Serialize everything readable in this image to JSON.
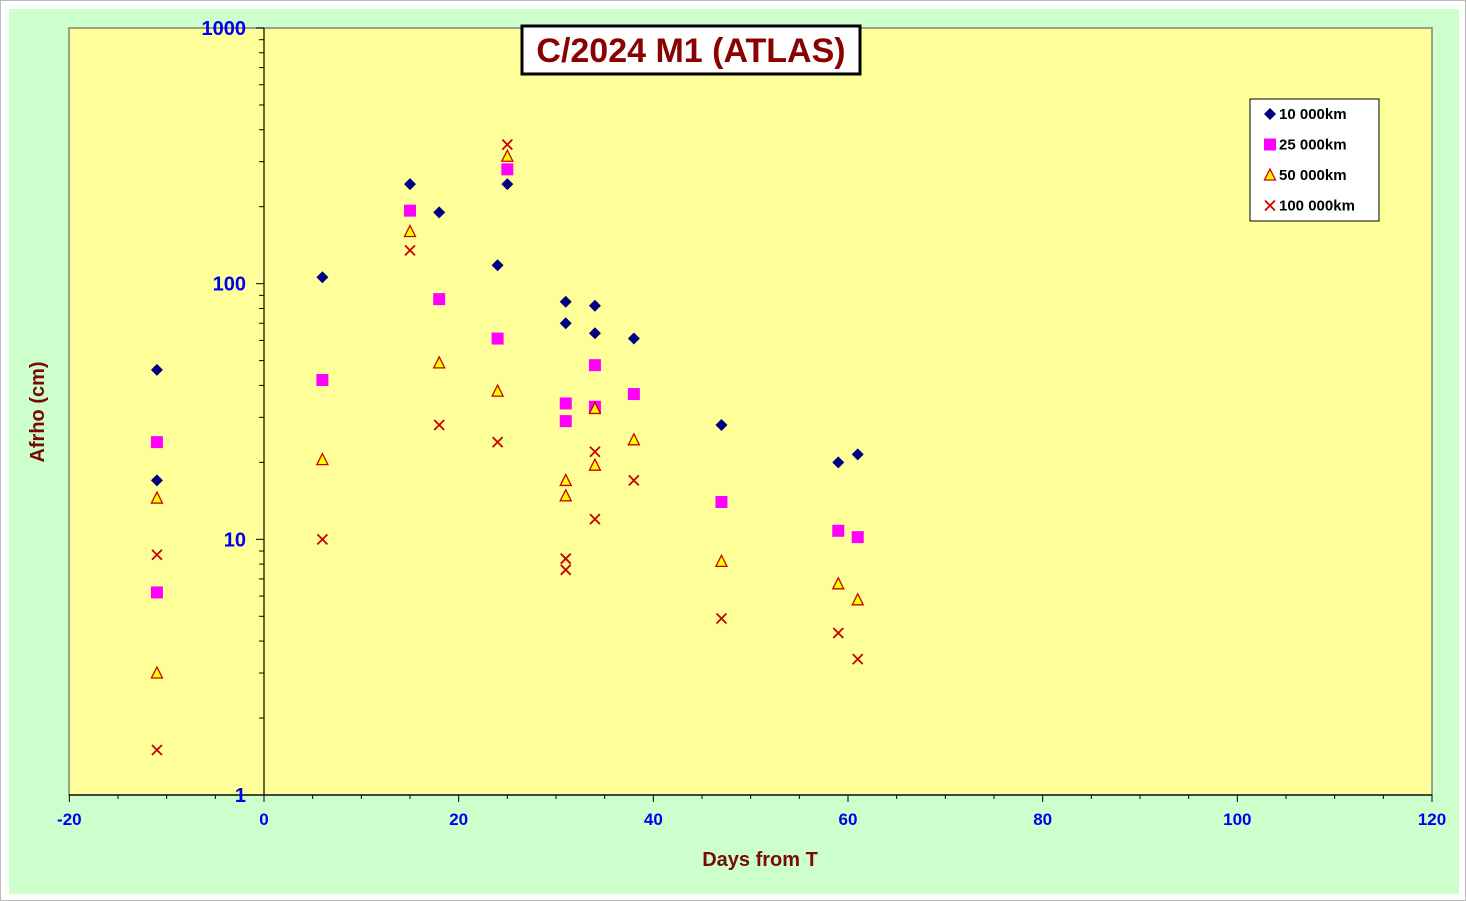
{
  "chart_data": {
    "type": "scatter",
    "title": "C/2024 M1 (ATLAS)",
    "xlabel": "Days from T",
    "ylabel": "Afrho (cm)",
    "xlim": [
      -20,
      120
    ],
    "ylim": [
      1,
      1000
    ],
    "yscale": "log",
    "x_ticks": [
      "-20",
      "0",
      "20",
      "40",
      "60",
      "80",
      "100",
      "120"
    ],
    "y_ticks": [
      "1",
      "10",
      "100",
      "1000"
    ],
    "grid": false,
    "legend_position": "top-right",
    "background_color": "#ccffcc",
    "plot_area_color": "#ffff99",
    "series": [
      {
        "name": "10 000km",
        "marker": "diamond",
        "color": "#000080",
        "points": [
          [
            -11,
            46
          ],
          [
            -11,
            17
          ],
          [
            6,
            106
          ],
          [
            15,
            245
          ],
          [
            18,
            190
          ],
          [
            24,
            118
          ],
          [
            25,
            245
          ],
          [
            31,
            85
          ],
          [
            31,
            70
          ],
          [
            34,
            82
          ],
          [
            34,
            64
          ],
          [
            38,
            61
          ],
          [
            47,
            28
          ],
          [
            59,
            20
          ],
          [
            61,
            21.5
          ]
        ]
      },
      {
        "name": "25 000km",
        "marker": "square",
        "color": "#ff00ff",
        "points": [
          [
            -11,
            24
          ],
          [
            -11,
            6.2
          ],
          [
            6,
            42
          ],
          [
            15,
            193
          ],
          [
            18,
            87
          ],
          [
            24,
            61
          ],
          [
            25,
            280
          ],
          [
            31,
            34
          ],
          [
            31,
            29
          ],
          [
            34,
            48
          ],
          [
            34,
            33
          ],
          [
            38,
            37
          ],
          [
            47,
            14
          ],
          [
            59,
            10.8
          ],
          [
            61,
            10.2
          ]
        ]
      },
      {
        "name": "50 000km",
        "marker": "triangle",
        "color": "#ffff00",
        "stroke": "#cc0000",
        "points": [
          [
            -11,
            14.5
          ],
          [
            -11,
            3
          ],
          [
            6,
            20.5
          ],
          [
            15,
            160
          ],
          [
            18,
            49
          ],
          [
            24,
            38
          ],
          [
            25,
            315
          ],
          [
            31,
            17
          ],
          [
            31,
            14.8
          ],
          [
            34,
            32.5
          ],
          [
            34,
            19.5
          ],
          [
            38,
            24.5
          ],
          [
            47,
            8.2
          ],
          [
            59,
            6.7
          ],
          [
            61,
            5.8
          ]
        ]
      },
      {
        "name": "100 000km",
        "marker": "x",
        "color": "#cc0000",
        "points": [
          [
            -11,
            8.7
          ],
          [
            -11,
            1.5
          ],
          [
            6,
            10
          ],
          [
            15,
            135
          ],
          [
            18,
            28
          ],
          [
            24,
            24
          ],
          [
            25,
            350
          ],
          [
            31,
            8.4
          ],
          [
            31,
            7.6
          ],
          [
            34,
            22
          ],
          [
            34,
            12
          ],
          [
            38,
            17
          ],
          [
            47,
            4.9
          ],
          [
            59,
            4.3
          ],
          [
            61,
            3.4
          ]
        ]
      }
    ]
  }
}
